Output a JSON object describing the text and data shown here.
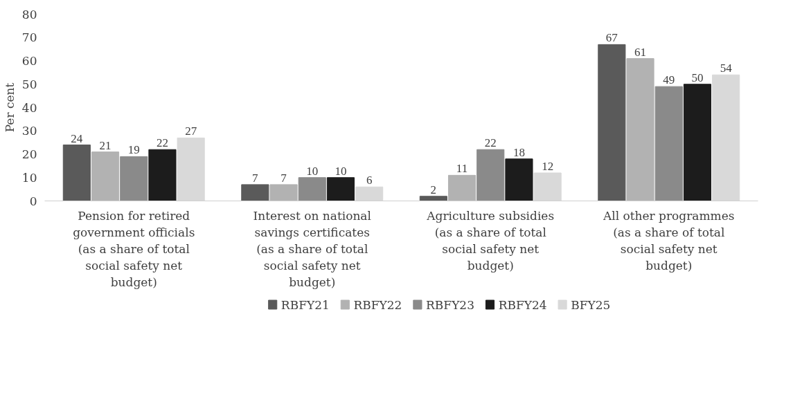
{
  "chart_data": {
    "type": "bar",
    "ylabel": "Per cent",
    "categories": [
      "Pension for retired government officials (as a share of total social safety net budget)",
      "Interest on national savings certificates (as a share of total social safety net budget)",
      "Agriculture subsidies (as a share of total social safety net budget)",
      "All other programmes (as a share of total social safety net budget)"
    ],
    "series": [
      {
        "name": "RBFY21",
        "color": "#5a5a5a",
        "values": [
          24,
          7,
          2,
          67
        ]
      },
      {
        "name": "RBFY22",
        "color": "#b2b2b2",
        "values": [
          21,
          7,
          11,
          61
        ]
      },
      {
        "name": "RBFY23",
        "color": "#8a8a8a",
        "values": [
          19,
          10,
          22,
          49
        ]
      },
      {
        "name": "RBFY24",
        "color": "#1c1c1c",
        "values": [
          22,
          10,
          18,
          50
        ]
      },
      {
        "name": "BFY25",
        "color": "#d9d9d9",
        "values": [
          27,
          6,
          12,
          54
        ]
      }
    ],
    "ylim": [
      0,
      80
    ],
    "yticks": [
      0,
      10,
      20,
      30,
      40,
      50,
      60,
      70,
      80
    ],
    "grid": false,
    "legend": "bottom",
    "data_labels": true
  }
}
